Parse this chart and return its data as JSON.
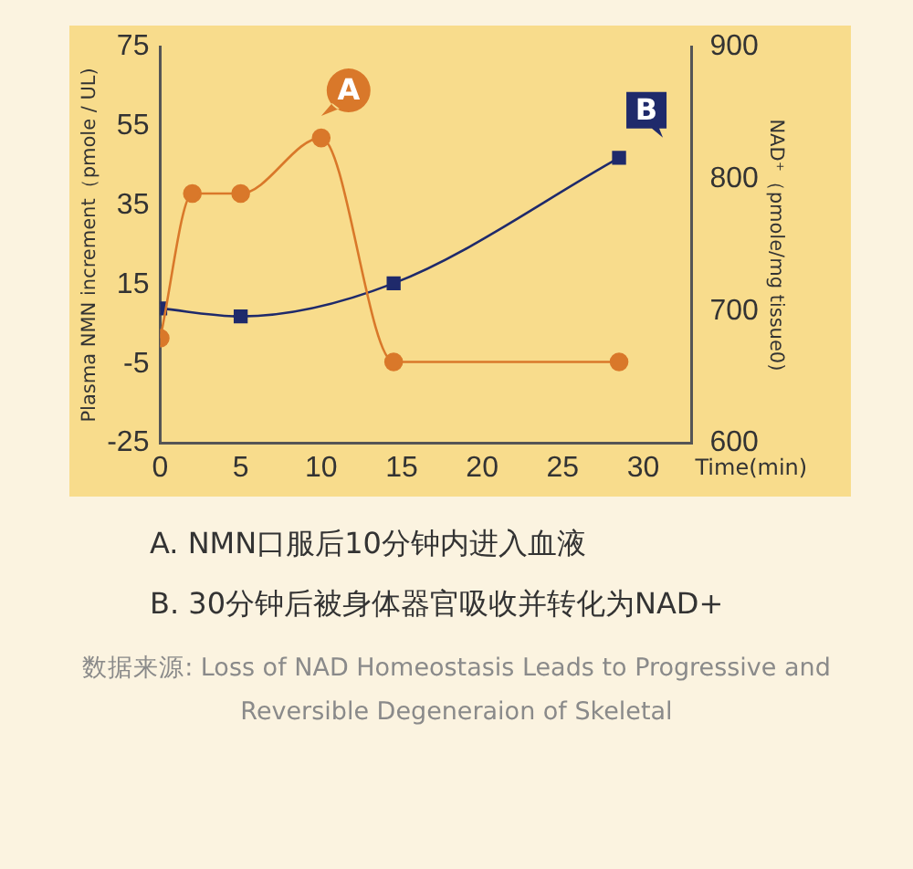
{
  "chart_data": {
    "type": "line",
    "xlabel": "Time(min)",
    "ylabel": "Plasma NMN increment（pmole / UL)",
    "y2label": "NAD⁺（pmole/mg tissue0)",
    "series": [
      {
        "color": "#d9782a",
        "marker": "circle",
        "x": [
          0,
          2,
          5,
          10,
          14.5,
          28.5
        ],
        "values": [
          1.5,
          38,
          38,
          52,
          -4.5,
          -4.5
        ]
      },
      {
        "color": "#1f2a6b",
        "marker": "square",
        "axis": "y2",
        "x": [
          0,
          5,
          14.5,
          28.5
        ],
        "values": [
          702,
          696,
          721,
          816
        ]
      }
    ],
    "xlim": [
      0,
      33
    ],
    "xticks": [
      0,
      5,
      10,
      15,
      20,
      25,
      30
    ],
    "ylim": [
      -25,
      75
    ],
    "yticks": [
      -25,
      -5,
      15,
      35,
      55,
      75
    ],
    "y2lim": [
      600,
      900
    ],
    "y2ticks": [
      600,
      700,
      800,
      900
    ],
    "grid": false,
    "legend": false,
    "annotations": [
      "A",
      "B",
      "A. NMN口服后10分钟内进入血液",
      "B. 30分钟后被身体器官吸收并转化为NAD+",
      "数据来源: Loss of NAD Homeostasis Leads to Progressive and Reversible Degeneraion of Skeletal"
    ]
  }
}
